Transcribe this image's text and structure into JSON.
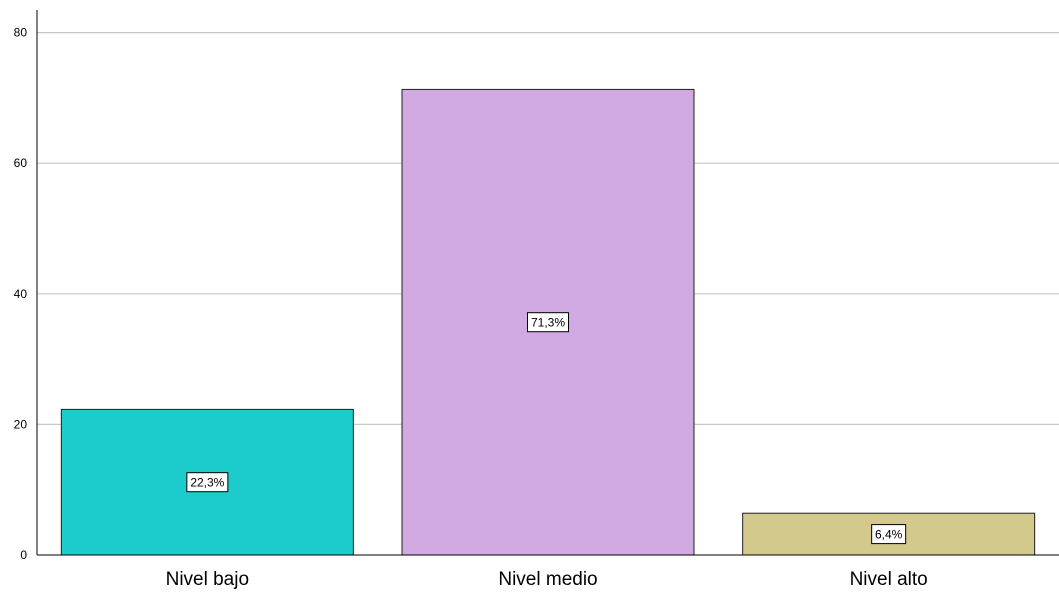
{
  "chart_data": {
    "type": "bar",
    "categories": [
      "Nivel bajo",
      "Nivel medio",
      "Nivel alto"
    ],
    "values": [
      22.3,
      71.3,
      6.4
    ],
    "data_labels": [
      "22,3%",
      "71,3%",
      "6,4%"
    ],
    "colors": [
      "#1ccccc",
      "#d1a9e3",
      "#d4c98c"
    ],
    "ylim": [
      0,
      82
    ],
    "yticks": [
      0,
      20,
      40,
      60,
      80
    ],
    "title": "",
    "xlabel": "",
    "ylabel": "",
    "grid": true
  }
}
